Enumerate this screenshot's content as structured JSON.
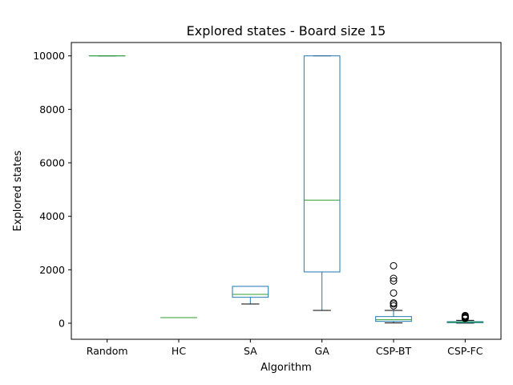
{
  "chart_data": {
    "type": "box",
    "title": "Explored states - Board size 15",
    "xlabel": "Algorithm",
    "ylabel": "Explored states",
    "ylim": [
      -600,
      10500
    ],
    "yticks": [
      0,
      2000,
      4000,
      6000,
      8000,
      10000
    ],
    "grid": false,
    "colors": {
      "box": "#1f77b4",
      "median": "#2ca02c",
      "whisker": "#000000",
      "flier": "#000000"
    },
    "categories": [
      "Random",
      "HC",
      "SA",
      "GA",
      "CSP-BT",
      "CSP-FC"
    ],
    "boxes": [
      {
        "name": "Random",
        "whislo": 10000,
        "q1": 10000,
        "med": 10000,
        "q3": 10000,
        "whishi": 10000,
        "fliers": []
      },
      {
        "name": "HC",
        "whislo": 210,
        "q1": 210,
        "med": 210,
        "q3": 210,
        "whishi": 210,
        "fliers": []
      },
      {
        "name": "SA",
        "whislo": 720,
        "q1": 970,
        "med": 1080,
        "q3": 1380,
        "whishi": 1380,
        "fliers": []
      },
      {
        "name": "GA",
        "whislo": 480,
        "q1": 1920,
        "med": 4600,
        "q3": 10000,
        "whishi": 10000,
        "fliers": []
      },
      {
        "name": "CSP-BT",
        "whislo": 10,
        "q1": 70,
        "med": 130,
        "q3": 250,
        "whishi": 480,
        "fliers": [
          650,
          720,
          760,
          1130,
          1580,
          1680,
          2150
        ]
      },
      {
        "name": "CSP-FC",
        "whislo": 5,
        "q1": 20,
        "med": 40,
        "q3": 60,
        "whishi": 110,
        "fliers": [
          180,
          200,
          230,
          260,
          290
        ]
      }
    ]
  }
}
